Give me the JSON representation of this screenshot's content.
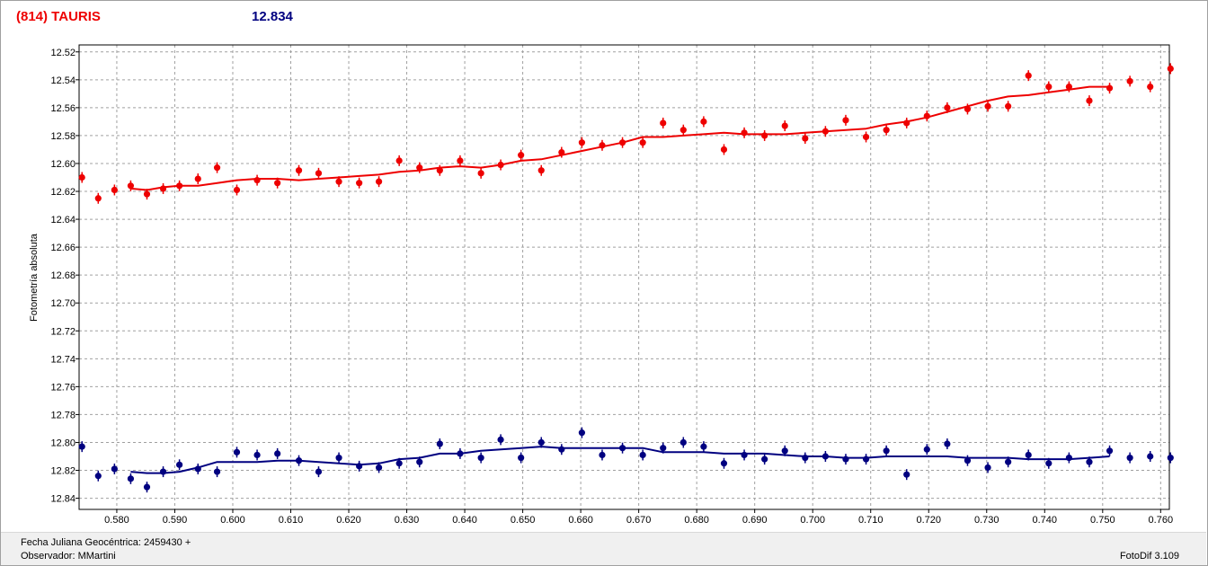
{
  "header": {
    "object_name": "(814) TAURIS",
    "mean_magnitude": "12.834"
  },
  "footer": {
    "date_line": "Fecha Juliana Geocéntrica: 2459430 +",
    "observer_line": "Observador: MMartini",
    "version": "FotoDif 3.109"
  },
  "colors": {
    "series_red": "#ee0000",
    "series_blue": "#000080",
    "grid": "#a0a0a0"
  },
  "chart_data": {
    "type": "scatter",
    "title": "",
    "xlabel": "",
    "ylabel": "Fotometría absoluta",
    "xlim": [
      0.5735,
      0.7615
    ],
    "ylim": [
      12.515,
      12.848
    ],
    "y_inverted": true,
    "grid": true,
    "x_ticks": [
      "0.580",
      "0.590",
      "0.600",
      "0.610",
      "0.620",
      "0.630",
      "0.640",
      "0.650",
      "0.660",
      "0.670",
      "0.680",
      "0.690",
      "0.700",
      "0.710",
      "0.720",
      "0.730",
      "0.740",
      "0.750",
      "0.760"
    ],
    "y_ticks": [
      "12.52",
      "12.54",
      "12.56",
      "12.58",
      "12.60",
      "12.62",
      "12.64",
      "12.66",
      "12.68",
      "12.70",
      "12.72",
      "12.74",
      "12.76",
      "12.78",
      "12.80",
      "12.82",
      "12.84"
    ],
    "series": [
      {
        "color": "#ee0000",
        "points": [
          [
            0.574,
            12.61
          ],
          [
            0.5768,
            12.625
          ],
          [
            0.5796,
            12.619
          ],
          [
            0.5824,
            12.616
          ],
          [
            0.5852,
            12.622
          ],
          [
            0.588,
            12.618
          ],
          [
            0.5908,
            12.616
          ],
          [
            0.594,
            12.611
          ],
          [
            0.5973,
            12.603
          ],
          [
            0.6007,
            12.619
          ],
          [
            0.6042,
            12.612
          ],
          [
            0.6077,
            12.614
          ],
          [
            0.6114,
            12.605
          ],
          [
            0.6148,
            12.607
          ],
          [
            0.6183,
            12.613
          ],
          [
            0.6218,
            12.614
          ],
          [
            0.6252,
            12.613
          ],
          [
            0.6287,
            12.598
          ],
          [
            0.6322,
            12.603
          ],
          [
            0.6357,
            12.605
          ],
          [
            0.6392,
            12.598
          ],
          [
            0.6428,
            12.607
          ],
          [
            0.6462,
            12.601
          ],
          [
            0.6497,
            12.594
          ],
          [
            0.6532,
            12.605
          ],
          [
            0.6567,
            12.592
          ],
          [
            0.6602,
            12.585
          ],
          [
            0.6637,
            12.587
          ],
          [
            0.6672,
            12.585
          ],
          [
            0.6707,
            12.585
          ],
          [
            0.6742,
            12.571
          ],
          [
            0.6777,
            12.576
          ],
          [
            0.6812,
            12.57
          ],
          [
            0.6847,
            12.59
          ],
          [
            0.6882,
            12.578
          ],
          [
            0.6917,
            12.58
          ],
          [
            0.6952,
            12.573
          ],
          [
            0.6987,
            12.582
          ],
          [
            0.7022,
            12.577
          ],
          [
            0.7057,
            12.569
          ],
          [
            0.7092,
            12.581
          ],
          [
            0.7127,
            12.576
          ],
          [
            0.7162,
            12.571
          ],
          [
            0.7197,
            12.566
          ],
          [
            0.7232,
            12.56
          ],
          [
            0.7267,
            12.561
          ],
          [
            0.7302,
            12.559
          ],
          [
            0.7337,
            12.559
          ],
          [
            0.7372,
            12.537
          ],
          [
            0.7407,
            12.545
          ],
          [
            0.7442,
            12.545
          ],
          [
            0.7477,
            12.555
          ],
          [
            0.7512,
            12.546
          ],
          [
            0.7547,
            12.541
          ],
          [
            0.7582,
            12.545
          ],
          [
            0.7617,
            12.532
          ]
        ],
        "fit": [
          [
            0.5824,
            12.618
          ],
          [
            0.5852,
            12.619
          ],
          [
            0.588,
            12.617
          ],
          [
            0.5908,
            12.616
          ],
          [
            0.594,
            12.616
          ],
          [
            0.5973,
            12.614
          ],
          [
            0.6007,
            12.612
          ],
          [
            0.6042,
            12.611
          ],
          [
            0.6077,
            12.611
          ],
          [
            0.6114,
            12.612
          ],
          [
            0.6148,
            12.611
          ],
          [
            0.6183,
            12.61
          ],
          [
            0.6218,
            12.609
          ],
          [
            0.6252,
            12.608
          ],
          [
            0.6287,
            12.606
          ],
          [
            0.6322,
            12.605
          ],
          [
            0.6357,
            12.603
          ],
          [
            0.6392,
            12.602
          ],
          [
            0.6428,
            12.603
          ],
          [
            0.6462,
            12.601
          ],
          [
            0.6497,
            12.598
          ],
          [
            0.6532,
            12.597
          ],
          [
            0.6567,
            12.594
          ],
          [
            0.6602,
            12.591
          ],
          [
            0.6637,
            12.588
          ],
          [
            0.6672,
            12.585
          ],
          [
            0.6707,
            12.581
          ],
          [
            0.6742,
            12.581
          ],
          [
            0.6777,
            12.58
          ],
          [
            0.6812,
            12.579
          ],
          [
            0.6847,
            12.578
          ],
          [
            0.6882,
            12.579
          ],
          [
            0.6917,
            12.579
          ],
          [
            0.6952,
            12.579
          ],
          [
            0.6987,
            12.578
          ],
          [
            0.7022,
            12.577
          ],
          [
            0.7057,
            12.576
          ],
          [
            0.7092,
            12.575
          ],
          [
            0.7127,
            12.572
          ],
          [
            0.7162,
            12.57
          ],
          [
            0.7197,
            12.567
          ],
          [
            0.7232,
            12.563
          ],
          [
            0.7267,
            12.559
          ],
          [
            0.7302,
            12.555
          ],
          [
            0.7337,
            12.552
          ],
          [
            0.7372,
            12.551
          ],
          [
            0.7407,
            12.549
          ],
          [
            0.7442,
            12.547
          ],
          [
            0.7477,
            12.545
          ],
          [
            0.7512,
            12.545
          ]
        ]
      },
      {
        "color": "#000080",
        "points": [
          [
            0.574,
            12.803
          ],
          [
            0.5768,
            12.824
          ],
          [
            0.5796,
            12.819
          ],
          [
            0.5824,
            12.826
          ],
          [
            0.5852,
            12.832
          ],
          [
            0.588,
            12.821
          ],
          [
            0.5908,
            12.816
          ],
          [
            0.594,
            12.819
          ],
          [
            0.5973,
            12.821
          ],
          [
            0.6007,
            12.807
          ],
          [
            0.6042,
            12.809
          ],
          [
            0.6077,
            12.808
          ],
          [
            0.6114,
            12.813
          ],
          [
            0.6148,
            12.821
          ],
          [
            0.6183,
            12.811
          ],
          [
            0.6218,
            12.817
          ],
          [
            0.6252,
            12.818
          ],
          [
            0.6287,
            12.815
          ],
          [
            0.6322,
            12.814
          ],
          [
            0.6357,
            12.801
          ],
          [
            0.6392,
            12.808
          ],
          [
            0.6428,
            12.811
          ],
          [
            0.6462,
            12.798
          ],
          [
            0.6497,
            12.811
          ],
          [
            0.6532,
            12.8
          ],
          [
            0.6567,
            12.805
          ],
          [
            0.6602,
            12.793
          ],
          [
            0.6637,
            12.809
          ],
          [
            0.6672,
            12.804
          ],
          [
            0.6707,
            12.809
          ],
          [
            0.6742,
            12.804
          ],
          [
            0.6777,
            12.8
          ],
          [
            0.6812,
            12.803
          ],
          [
            0.6847,
            12.815
          ],
          [
            0.6882,
            12.809
          ],
          [
            0.6917,
            12.812
          ],
          [
            0.6952,
            12.806
          ],
          [
            0.6987,
            12.811
          ],
          [
            0.7022,
            12.81
          ],
          [
            0.7057,
            12.812
          ],
          [
            0.7092,
            12.812
          ],
          [
            0.7127,
            12.806
          ],
          [
            0.7162,
            12.823
          ],
          [
            0.7197,
            12.805
          ],
          [
            0.7232,
            12.801
          ],
          [
            0.7267,
            12.813
          ],
          [
            0.7302,
            12.818
          ],
          [
            0.7337,
            12.814
          ],
          [
            0.7372,
            12.809
          ],
          [
            0.7407,
            12.815
          ],
          [
            0.7442,
            12.811
          ],
          [
            0.7477,
            12.814
          ],
          [
            0.7512,
            12.806
          ],
          [
            0.7547,
            12.811
          ],
          [
            0.7582,
            12.81
          ],
          [
            0.7617,
            12.811
          ]
        ],
        "fit": [
          [
            0.5824,
            12.821
          ],
          [
            0.5852,
            12.822
          ],
          [
            0.588,
            12.822
          ],
          [
            0.5908,
            12.821
          ],
          [
            0.594,
            12.818
          ],
          [
            0.5973,
            12.814
          ],
          [
            0.6007,
            12.814
          ],
          [
            0.6042,
            12.814
          ],
          [
            0.6077,
            12.813
          ],
          [
            0.6114,
            12.813
          ],
          [
            0.6148,
            12.814
          ],
          [
            0.6183,
            12.815
          ],
          [
            0.6218,
            12.816
          ],
          [
            0.6252,
            12.815
          ],
          [
            0.6287,
            12.812
          ],
          [
            0.6322,
            12.811
          ],
          [
            0.6357,
            12.808
          ],
          [
            0.6392,
            12.808
          ],
          [
            0.6428,
            12.806
          ],
          [
            0.6462,
            12.805
          ],
          [
            0.6497,
            12.804
          ],
          [
            0.6532,
            12.803
          ],
          [
            0.6567,
            12.804
          ],
          [
            0.6602,
            12.804
          ],
          [
            0.6637,
            12.804
          ],
          [
            0.6672,
            12.804
          ],
          [
            0.6707,
            12.804
          ],
          [
            0.6742,
            12.807
          ],
          [
            0.6777,
            12.807
          ],
          [
            0.6812,
            12.807
          ],
          [
            0.6847,
            12.808
          ],
          [
            0.6882,
            12.808
          ],
          [
            0.6917,
            12.808
          ],
          [
            0.6952,
            12.809
          ],
          [
            0.6987,
            12.81
          ],
          [
            0.7022,
            12.81
          ],
          [
            0.7057,
            12.811
          ],
          [
            0.7092,
            12.811
          ],
          [
            0.7127,
            12.81
          ],
          [
            0.7162,
            12.81
          ],
          [
            0.7197,
            12.81
          ],
          [
            0.7232,
            12.81
          ],
          [
            0.7267,
            12.811
          ],
          [
            0.7302,
            12.811
          ],
          [
            0.7337,
            12.811
          ],
          [
            0.7372,
            12.812
          ],
          [
            0.7407,
            12.812
          ],
          [
            0.7442,
            12.812
          ],
          [
            0.7477,
            12.811
          ],
          [
            0.7512,
            12.81
          ]
        ]
      }
    ]
  }
}
